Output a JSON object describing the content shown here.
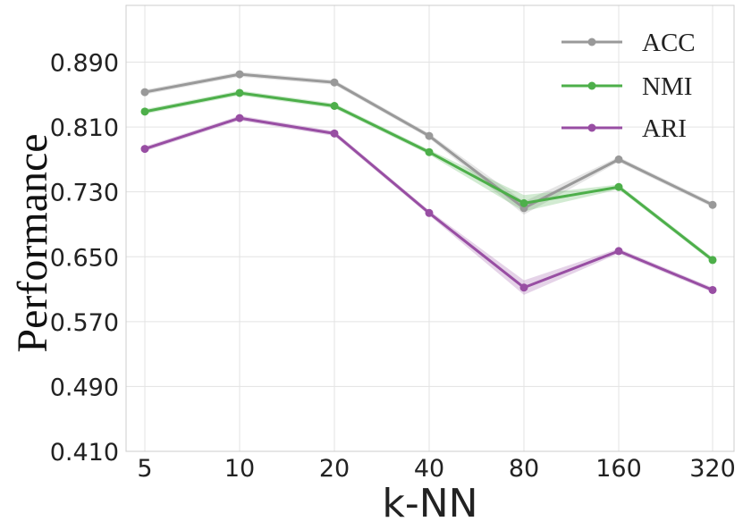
{
  "chart_data": {
    "type": "line",
    "title": "",
    "xlabel": "k-NN",
    "ylabel": "Performance",
    "categories": [
      "5",
      "10",
      "20",
      "40",
      "80",
      "160",
      "320"
    ],
    "yticks": [
      "0.410",
      "0.490",
      "0.570",
      "0.650",
      "0.730",
      "0.810",
      "0.890"
    ],
    "ylim": [
      0.41,
      0.96
    ],
    "grid": true,
    "legend_position": "top-right",
    "series": [
      {
        "name": "ACC",
        "color": "#999999",
        "values": [
          0.853,
          0.875,
          0.865,
          0.799,
          0.71,
          0.77,
          0.714
        ],
        "band": [
          0.003,
          0.003,
          0.003,
          0.003,
          0.008,
          0.003,
          0.003
        ]
      },
      {
        "name": "NMI",
        "color": "#4daf4a",
        "values": [
          0.829,
          0.852,
          0.836,
          0.779,
          0.716,
          0.736,
          0.646
        ],
        "band": [
          0.003,
          0.003,
          0.003,
          0.003,
          0.01,
          0.003,
          0.003
        ]
      },
      {
        "name": "ARI",
        "color": "#984ea3",
        "values": [
          0.783,
          0.821,
          0.802,
          0.704,
          0.612,
          0.657,
          0.609
        ],
        "band": [
          0.003,
          0.003,
          0.003,
          0.003,
          0.009,
          0.003,
          0.003
        ]
      }
    ]
  }
}
